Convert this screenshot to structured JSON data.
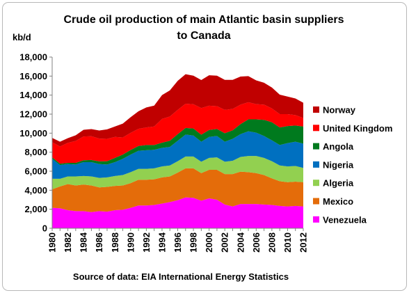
{
  "chart_data": {
    "type": "area",
    "stacked": true,
    "title_line1": "Crude oil production of main Atlantic basin suppliers",
    "title_line2": "to Canada",
    "ylabel": "kb/d",
    "ylim": [
      0,
      18000
    ],
    "yticks": [
      0,
      2000,
      4000,
      6000,
      8000,
      10000,
      12000,
      14000,
      16000,
      18000
    ],
    "ytick_labels": [
      "0",
      "2,000",
      "4,000",
      "6,000",
      "8,000",
      "10,000",
      "12,000",
      "14,000",
      "16,000",
      "18,000"
    ],
    "x": [
      1980,
      1981,
      1982,
      1983,
      1984,
      1985,
      1986,
      1987,
      1988,
      1989,
      1990,
      1991,
      1992,
      1993,
      1994,
      1995,
      1996,
      1997,
      1998,
      1999,
      2000,
      2001,
      2002,
      2003,
      2004,
      2005,
      2006,
      2007,
      2008,
      2009,
      2010,
      2011,
      2012
    ],
    "xtick_labels": [
      "1980",
      "1982",
      "1984",
      "1986",
      "1988",
      "1990",
      "1992",
      "1994",
      "1996",
      "1998",
      "2000",
      "2002",
      "2004",
      "2006",
      "2008",
      "2010",
      "2012"
    ],
    "grid": false,
    "legend_position": "right",
    "series": [
      {
        "name": "Venezuela",
        "color": "#ff00ff",
        "values": [
          2150,
          2100,
          1900,
          1800,
          1800,
          1700,
          1800,
          1750,
          1900,
          1950,
          2150,
          2400,
          2400,
          2450,
          2600,
          2750,
          2950,
          3250,
          3200,
          2900,
          3150,
          3000,
          2500,
          2300,
          2550,
          2550,
          2550,
          2500,
          2450,
          2350,
          2300,
          2350,
          2300
        ]
      },
      {
        "name": "Mexico",
        "color": "#e46c0a",
        "values": [
          1950,
          2300,
          2750,
          2700,
          2800,
          2800,
          2500,
          2600,
          2550,
          2550,
          2600,
          2700,
          2700,
          2700,
          2750,
          2700,
          2900,
          3050,
          3100,
          2900,
          3000,
          3150,
          3200,
          3400,
          3400,
          3350,
          3250,
          3100,
          2800,
          2600,
          2550,
          2550,
          2550
        ]
      },
      {
        "name": "Algeria",
        "color": "#92d050",
        "values": [
          1100,
          800,
          800,
          950,
          900,
          950,
          1000,
          1000,
          1050,
          1100,
          1150,
          1150,
          1150,
          1150,
          1150,
          1150,
          1200,
          1250,
          1250,
          1200,
          1250,
          1300,
          1300,
          1400,
          1550,
          1700,
          1800,
          1800,
          1800,
          1650,
          1650,
          1650,
          1500
        ]
      },
      {
        "name": "Nigeria",
        "color": "#0070c0",
        "values": [
          2100,
          1450,
          1300,
          1250,
          1450,
          1500,
          1450,
          1350,
          1450,
          1700,
          1850,
          1900,
          1950,
          1950,
          1950,
          1950,
          2150,
          2300,
          2200,
          2100,
          2200,
          2250,
          2100,
          2300,
          2400,
          2600,
          2450,
          2300,
          2200,
          2150,
          2450,
          2550,
          2550
        ]
      },
      {
        "name": "Angola",
        "color": "#007a1e",
        "values": [
          150,
          150,
          130,
          180,
          200,
          230,
          280,
          350,
          450,
          450,
          480,
          500,
          550,
          500,
          550,
          650,
          700,
          700,
          740,
          740,
          740,
          740,
          900,
          900,
          1050,
          1250,
          1400,
          1700,
          1900,
          1850,
          1800,
          1700,
          1800
        ]
      },
      {
        "name": "United Kingdom",
        "color": "#ff0000",
        "values": [
          1600,
          1800,
          2100,
          2300,
          2500,
          2500,
          2400,
          2350,
          2200,
          1800,
          1800,
          1800,
          1850,
          1950,
          2500,
          2550,
          2550,
          2550,
          2550,
          2800,
          2550,
          2400,
          2450,
          2250,
          2050,
          1800,
          1600,
          1600,
          1450,
          1400,
          1250,
          1100,
          900
        ]
      },
      {
        "name": "Norway",
        "color": "#c00000",
        "values": [
          450,
          500,
          500,
          600,
          700,
          750,
          850,
          1000,
          1100,
          1450,
          1650,
          1850,
          2100,
          2200,
          2500,
          2750,
          3050,
          3100,
          3000,
          2950,
          3200,
          3200,
          3150,
          3050,
          2950,
          2750,
          2500,
          2300,
          2200,
          2050,
          1850,
          1750,
          1600
        ]
      }
    ],
    "source_note": "Source of data: EIA International Energy Statistics"
  }
}
